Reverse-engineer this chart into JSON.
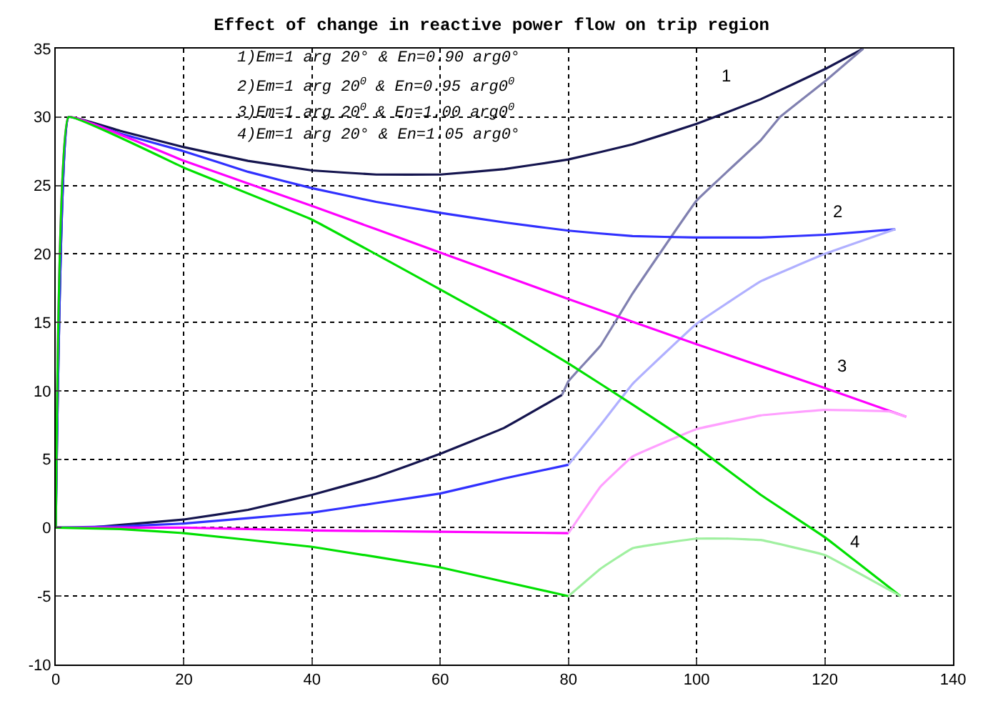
{
  "chart_data": {
    "type": "line",
    "title": "Effect of change in reactive power flow on trip region",
    "xlim": [
      0,
      140
    ],
    "xticks": [
      0,
      20,
      40,
      60,
      80,
      100,
      120,
      140
    ],
    "ylim": [
      -10,
      35
    ],
    "yticks": [
      -10,
      -5,
      0,
      5,
      10,
      15,
      20,
      25,
      30,
      35
    ],
    "grid": true,
    "marker": "none",
    "line_style": "solid",
    "series": [
      {
        "color": "#14144e",
        "x": [
          0,
          2,
          10,
          20,
          30,
          40,
          50,
          60,
          70,
          80,
          90,
          100,
          110,
          120,
          126
        ],
        "values": [
          0,
          30,
          29,
          27.8,
          26.8,
          26.1,
          25.8,
          25.8,
          26.2,
          26.9,
          28,
          29.5,
          31.3,
          33.5,
          35
        ]
      },
      {
        "color": "#14144e",
        "x": [
          0,
          5,
          10,
          20,
          30,
          40,
          50,
          60,
          70,
          79
        ],
        "values": [
          0,
          0,
          0.2,
          0.6,
          1.3,
          2.4,
          3.7,
          5.4,
          7.3,
          9.7
        ]
      },
      {
        "color": "#8080b0",
        "x": [
          79,
          80,
          85,
          90,
          100,
          110,
          113,
          120,
          126
        ],
        "values": [
          9.7,
          10.7,
          13.3,
          17.1,
          23.9,
          28.3,
          30,
          32.6,
          35
        ]
      },
      {
        "color": "#3030ff",
        "x": [
          0,
          2,
          10,
          20,
          30,
          40,
          50,
          60,
          70,
          80,
          90,
          100,
          110,
          120,
          131
        ],
        "values": [
          0,
          30,
          28.8,
          27.5,
          26,
          24.8,
          23.8,
          23,
          22.3,
          21.7,
          21.3,
          21.2,
          21.2,
          21.4,
          21.8
        ]
      },
      {
        "color": "#3030ff",
        "x": [
          0,
          10,
          20,
          30,
          40,
          50,
          60,
          70,
          80
        ],
        "values": [
          0,
          0.1,
          0.3,
          0.7,
          1.1,
          1.8,
          2.5,
          3.6,
          4.6
        ]
      },
      {
        "color": "#b0b0ff",
        "x": [
          80,
          85,
          90,
          100,
          110,
          120,
          131
        ],
        "values": [
          4.6,
          7.5,
          10.5,
          14.9,
          18,
          20,
          21.8
        ]
      },
      {
        "color": "#ff00ff",
        "x": [
          0,
          2,
          20,
          40,
          60,
          80,
          100,
          120,
          132.7
        ],
        "values": [
          0,
          30,
          26.8,
          23.5,
          20.1,
          16.7,
          13.4,
          10.2,
          8.1
        ]
      },
      {
        "color": "#ff00ff",
        "x": [
          0,
          20,
          40,
          60,
          80
        ],
        "values": [
          0,
          0,
          -0.2,
          -0.3,
          -0.4
        ]
      },
      {
        "color": "#ffa0ff",
        "x": [
          80,
          85,
          90,
          100,
          110,
          120,
          130,
          132.7
        ],
        "values": [
          -0.4,
          3,
          5.2,
          7.2,
          8.2,
          8.6,
          8.5,
          8.1
        ]
      },
      {
        "color": "#00e000",
        "x": [
          0,
          2,
          20,
          40,
          60,
          70,
          80,
          90,
          100,
          110,
          120,
          131.8
        ],
        "values": [
          0,
          30,
          26.3,
          22.5,
          17.4,
          14.8,
          12,
          9,
          5.9,
          2.4,
          -0.7,
          -5
        ]
      },
      {
        "color": "#00e000",
        "x": [
          0,
          10,
          20,
          40,
          60,
          80
        ],
        "values": [
          0,
          -0.1,
          -0.4,
          -1.4,
          -2.9,
          -5
        ]
      },
      {
        "color": "#a0f0a0",
        "x": [
          80,
          85,
          90,
          100,
          105,
          110,
          120,
          131.8
        ],
        "values": [
          -5,
          -3,
          -1.5,
          -0.8,
          -0.8,
          -0.9,
          -2,
          -5
        ]
      }
    ],
    "annotations": [
      "1)Em=1 arg 20° & En=0.90 arg0°",
      "2)Em=1 arg 20$^{0}$ & En=0.95 arg0$^{0}$",
      "3)Em=1 arg 20$^{0}$ & En=1.00 arg0$^{0}$",
      "4)Em=1 arg 20° & En=1.05 arg0°",
      "1",
      "2",
      "3",
      "4"
    ]
  }
}
